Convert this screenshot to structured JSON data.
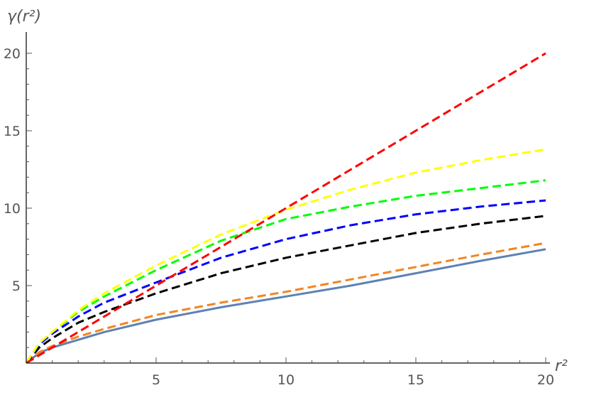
{
  "chart_data": {
    "type": "line",
    "title": "",
    "xlabel": "r²",
    "ylabel": "γ(r²)",
    "xlim": [
      0,
      20
    ],
    "ylim": [
      0,
      21
    ],
    "xticks": [
      5,
      10,
      15,
      20
    ],
    "yticks": [
      5,
      10,
      15,
      20
    ],
    "grid": false,
    "x": [
      0,
      0.5,
      1,
      2,
      3,
      5,
      7.5,
      10,
      12.5,
      15,
      17.5,
      20
    ],
    "series": [
      {
        "color": "#5e81b5",
        "style": "solid",
        "values": [
          0,
          0.65,
          1.0,
          1.5,
          2.0,
          2.8,
          3.6,
          4.3,
          5.0,
          5.8,
          6.6,
          7.35
        ]
      },
      {
        "color": "#f28522",
        "style": "dashed",
        "values": [
          0,
          0.7,
          1.1,
          1.7,
          2.2,
          3.1,
          3.9,
          4.6,
          5.4,
          6.2,
          7.0,
          7.75
        ]
      },
      {
        "color": "#000000",
        "style": "dashed",
        "values": [
          0,
          1.0,
          1.6,
          2.6,
          3.3,
          4.5,
          5.8,
          6.8,
          7.6,
          8.4,
          9.0,
          9.5
        ]
      },
      {
        "color": "#0000ff",
        "style": "dashed",
        "values": [
          0,
          1.2,
          1.9,
          3.0,
          3.9,
          5.2,
          6.8,
          8.0,
          8.9,
          9.6,
          10.1,
          10.5
        ]
      },
      {
        "color": "#00ff00",
        "style": "dashed",
        "values": [
          0,
          1.3,
          2.0,
          3.3,
          4.3,
          6.0,
          7.9,
          9.3,
          10.1,
          10.8,
          11.3,
          11.8
        ]
      },
      {
        "color": "#ffff00",
        "style": "dashed",
        "values": [
          0,
          1.3,
          2.0,
          3.4,
          4.5,
          6.3,
          8.3,
          9.9,
          11.2,
          12.3,
          13.1,
          13.8
        ]
      },
      {
        "color": "#ff0000",
        "style": "dashed",
        "values": [
          0,
          0.5,
          1,
          2,
          3,
          5,
          7.5,
          10,
          12.5,
          15,
          17.5,
          20
        ]
      }
    ]
  }
}
